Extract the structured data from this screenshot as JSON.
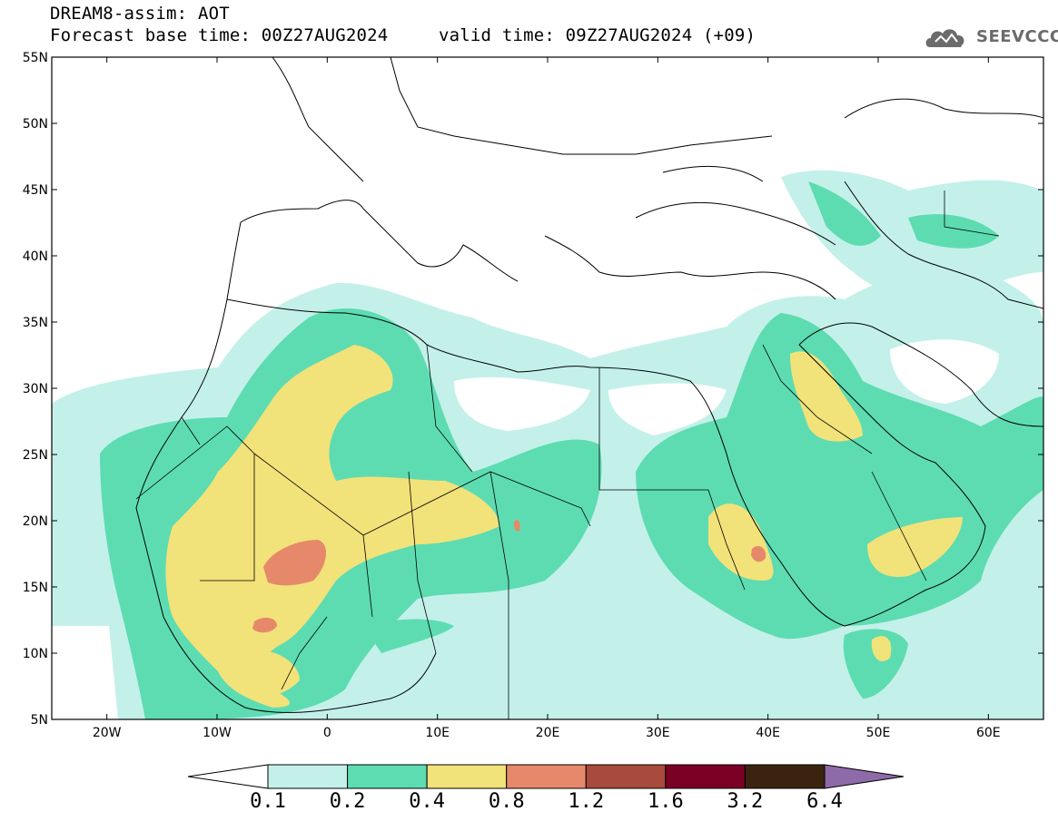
{
  "header": {
    "title": "DREAM8-assim: AOT",
    "base_time": "Forecast base time: 00Z27AUG2024",
    "valid_time": "valid time: 09Z27AUG2024 (+09)",
    "logo_text": "SEEVCCC"
  },
  "map": {
    "variable": "AOT",
    "lon_range": [
      -25,
      65
    ],
    "lat_range": [
      5,
      55
    ],
    "lon_ticks": [
      {
        "value": -20,
        "label": "20W"
      },
      {
        "value": -10,
        "label": "10W"
      },
      {
        "value": 0,
        "label": "0"
      },
      {
        "value": 10,
        "label": "10E"
      },
      {
        "value": 20,
        "label": "20E"
      },
      {
        "value": 30,
        "label": "30E"
      },
      {
        "value": 40,
        "label": "40E"
      },
      {
        "value": 50,
        "label": "50E"
      },
      {
        "value": 60,
        "label": "60E"
      }
    ],
    "lat_ticks": [
      {
        "value": 55,
        "label": "55N"
      },
      {
        "value": 50,
        "label": "50N"
      },
      {
        "value": 45,
        "label": "45N"
      },
      {
        "value": 40,
        "label": "40N"
      },
      {
        "value": 35,
        "label": "35N"
      },
      {
        "value": 30,
        "label": "30N"
      },
      {
        "value": 25,
        "label": "25N"
      },
      {
        "value": 20,
        "label": "20N"
      },
      {
        "value": 15,
        "label": "15N"
      },
      {
        "value": 10,
        "label": "10N"
      },
      {
        "value": 5,
        "label": "5N"
      }
    ]
  },
  "colorbar": {
    "levels": [
      "0.1",
      "0.2",
      "0.4",
      "0.8",
      "1.2",
      "1.6",
      "3.2",
      "6.4"
    ],
    "colors": [
      "#ffffff",
      "#c4f0ea",
      "#5ddcb2",
      "#f2e27a",
      "#e6896a",
      "#a84a3c",
      "#7a0026",
      "#3a2410",
      "#8e6aa8"
    ]
  }
}
